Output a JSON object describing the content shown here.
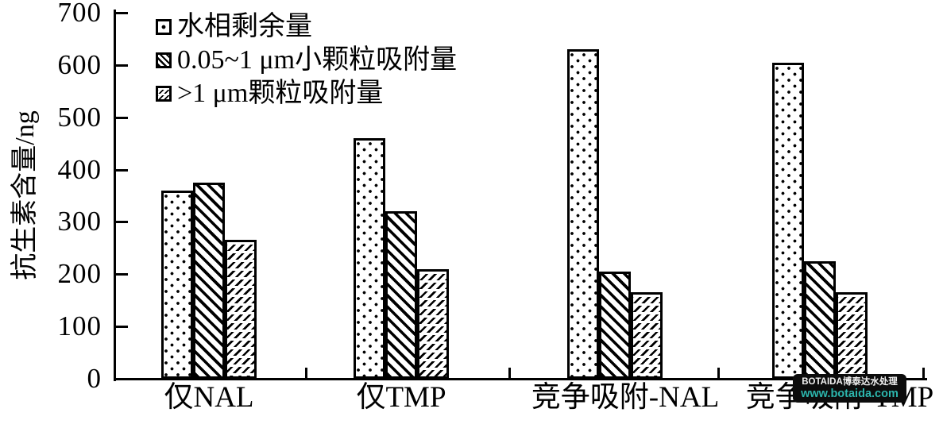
{
  "chart_data": {
    "type": "bar",
    "title": "",
    "xlabel": "",
    "ylabel": "抗生素含量/ng",
    "ylim": [
      0,
      700
    ],
    "yticks": [
      0,
      100,
      200,
      300,
      400,
      500,
      600,
      700
    ],
    "grid": false,
    "legend_position": "top-left-inside",
    "categories": [
      "仅NAL",
      "仅TMP",
      "竞争吸附-NAL",
      "竞争吸附-TMP"
    ],
    "series": [
      {
        "name": "水相剩余量",
        "pattern": "dots",
        "values": [
          360,
          460,
          630,
          605
        ]
      },
      {
        "name": "0.05~1 μm小颗粒吸附量",
        "pattern": "hatch",
        "values": [
          375,
          320,
          205,
          225
        ]
      },
      {
        "name": ">1 μm颗粒吸附量",
        "pattern": "dash",
        "values": [
          265,
          210,
          165,
          165
        ]
      }
    ],
    "colors": {
      "foreground": "#000000",
      "background": "#ffffff"
    }
  },
  "watermark": {
    "line1": "BOTAIDA博泰达水处理",
    "line2": "www.botaida.com",
    "line2_color": "#2cb5ac"
  }
}
